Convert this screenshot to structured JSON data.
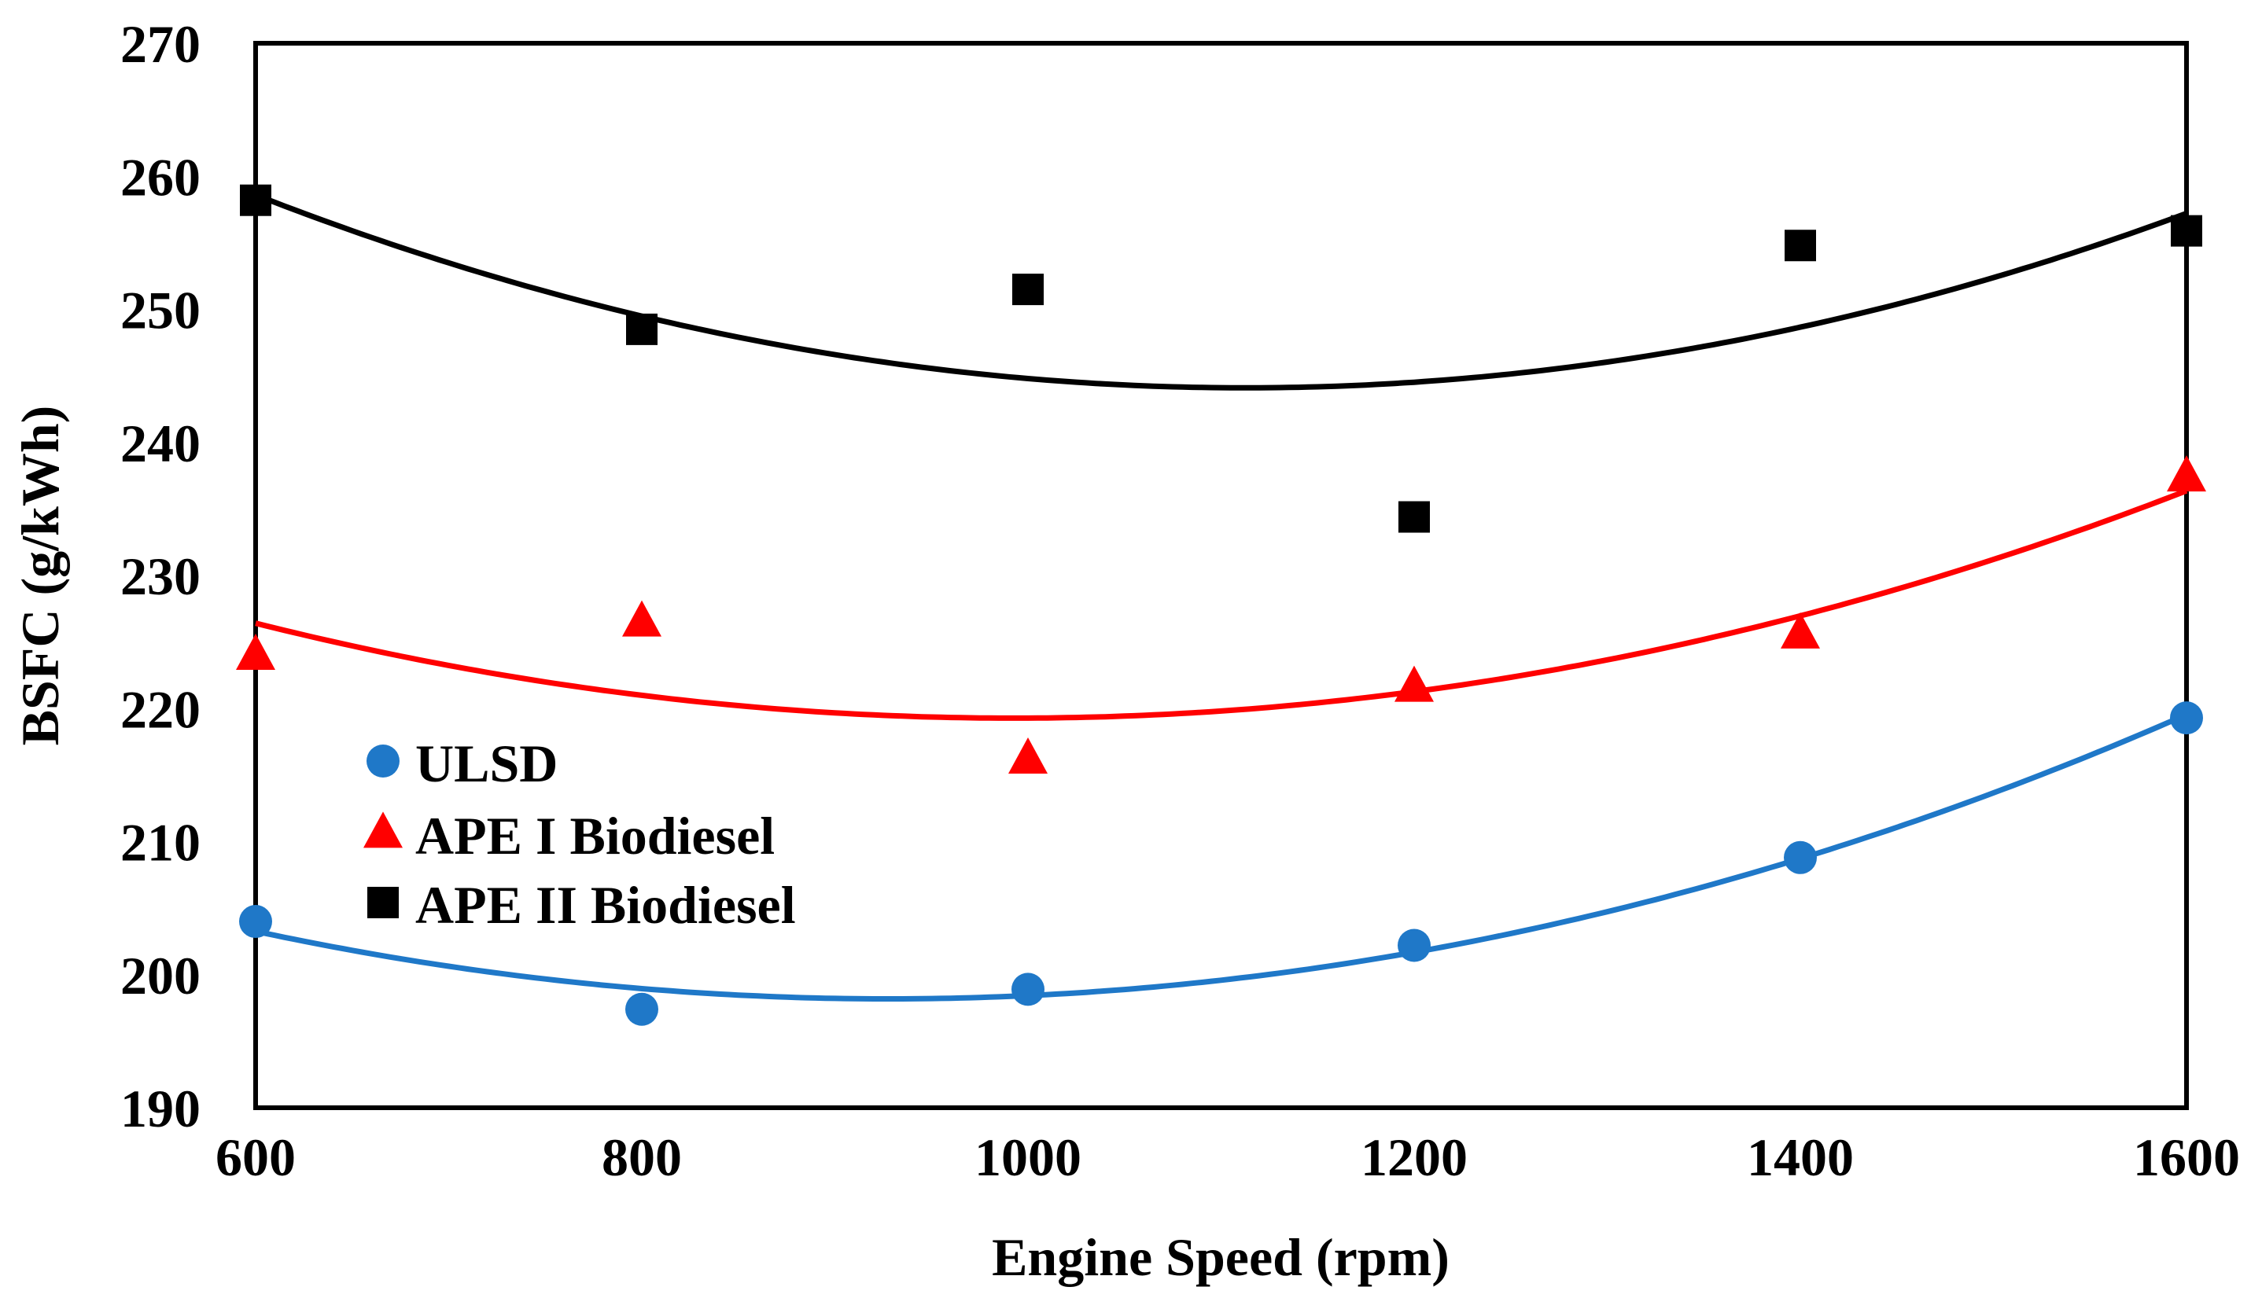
{
  "chart_data": {
    "type": "scatter",
    "title": "",
    "xlabel": "Engine Speed (rpm)",
    "ylabel": "BSFC (g/kWh)",
    "xlim": [
      600,
      1600
    ],
    "ylim": [
      190,
      270
    ],
    "x_ticks": [
      "600",
      "800",
      "1000",
      "1200",
      "1400",
      "1600"
    ],
    "y_ticks": [
      "190",
      "200",
      "210",
      "220",
      "230",
      "240",
      "250",
      "260",
      "270"
    ],
    "grid": false,
    "legend_position": "left-middle",
    "x": [
      600,
      800,
      1000,
      1200,
      1400,
      1600
    ],
    "series": [
      {
        "name": "ULSD",
        "marker": "circle",
        "color": "#1f78c8",
        "values": [
          204.0,
          197.4,
          198.9,
          202.2,
          208.8,
          219.3
        ],
        "trendline": "polynomial-2"
      },
      {
        "name": "APE I Biodiesel",
        "marker": "triangle",
        "color": "#ff0000",
        "values": [
          224.0,
          226.5,
          216.2,
          221.6,
          225.6,
          237.4
        ],
        "trendline": "polynomial-2"
      },
      {
        "name": "APE II Biodiesel",
        "marker": "square",
        "color": "#000000",
        "values": [
          258.2,
          248.5,
          251.5,
          234.4,
          254.8,
          255.9
        ],
        "trendline": "polynomial-2"
      }
    ]
  }
}
